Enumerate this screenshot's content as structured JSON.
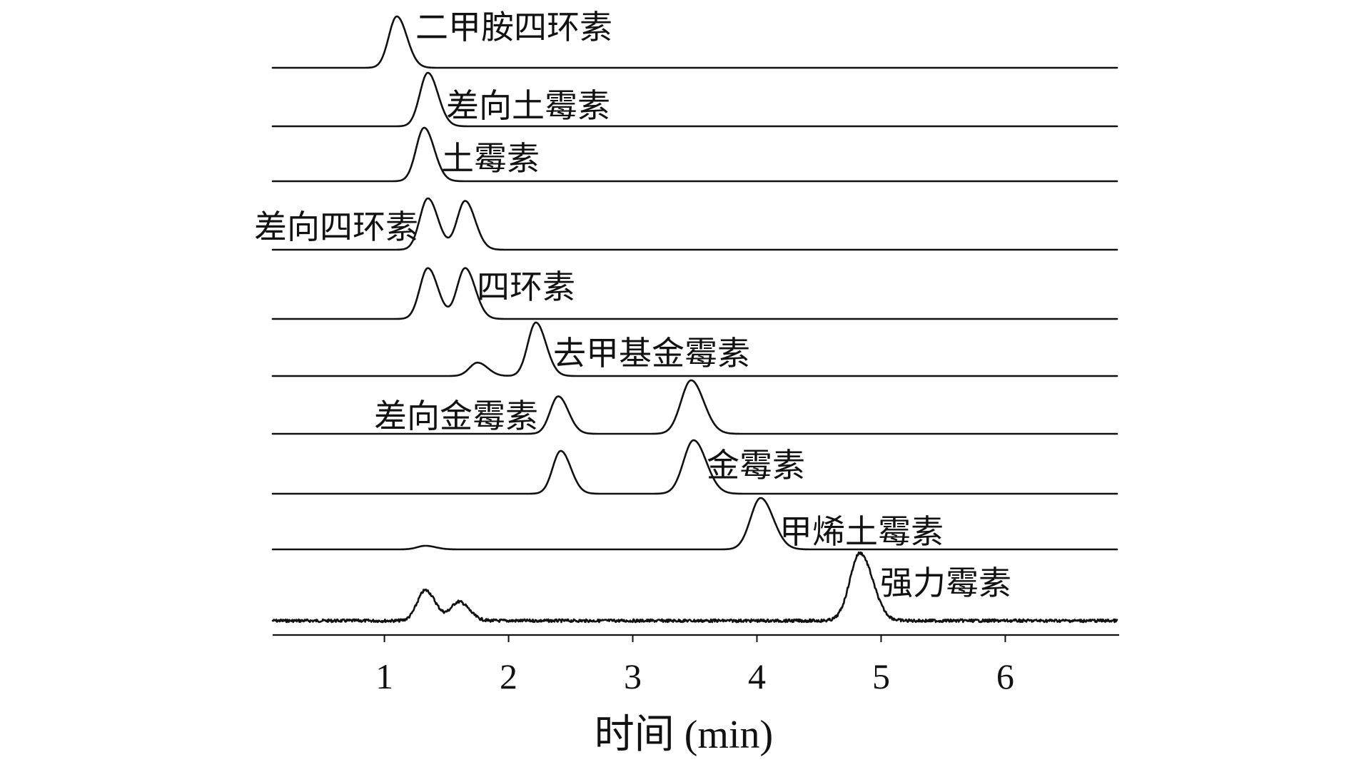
{
  "chart_data": {
    "type": "line",
    "xlabel": "时间 (min)",
    "ylabel": "",
    "xlim": [
      0.1,
      6.9
    ],
    "x_ticks": [
      1,
      2,
      3,
      4,
      5,
      6
    ],
    "grid": false,
    "series": [
      {
        "name": "二甲胺四环素",
        "peaks": [
          {
            "rt": 1.1,
            "height": 1.0
          }
        ]
      },
      {
        "name": "差向土霉素",
        "peaks": [
          {
            "rt": 1.35,
            "height": 1.0
          }
        ]
      },
      {
        "name": "土霉素",
        "peaks": [
          {
            "rt": 1.32,
            "height": 1.0
          }
        ]
      },
      {
        "name": "差向四环素",
        "peaks": [
          {
            "rt": 1.35,
            "height": 1.0
          },
          {
            "rt": 1.65,
            "height": 0.95
          }
        ]
      },
      {
        "name": "四环素",
        "peaks": [
          {
            "rt": 1.35,
            "height": 0.95
          },
          {
            "rt": 1.65,
            "height": 0.95
          }
        ]
      },
      {
        "name": "去甲基金霉素",
        "peaks": [
          {
            "rt": 1.75,
            "height": 0.25
          },
          {
            "rt": 2.22,
            "height": 1.0
          }
        ]
      },
      {
        "name": "差向金霉素",
        "peaks": [
          {
            "rt": 2.4,
            "height": 0.7
          },
          {
            "rt": 3.47,
            "height": 1.0
          }
        ]
      },
      {
        "name": "金霉素",
        "peaks": [
          {
            "rt": 2.42,
            "height": 0.8
          },
          {
            "rt": 3.49,
            "height": 1.0
          }
        ]
      },
      {
        "name": "甲烯土霉素",
        "peaks": [
          {
            "rt": 1.33,
            "height": 0.07
          },
          {
            "rt": 4.03,
            "height": 1.0
          }
        ]
      },
      {
        "name": "强力霉素",
        "peaks": [
          {
            "rt": 1.33,
            "height": 0.45
          },
          {
            "rt": 1.6,
            "height": 0.28
          },
          {
            "rt": 4.83,
            "height": 1.0
          }
        ]
      }
    ]
  }
}
